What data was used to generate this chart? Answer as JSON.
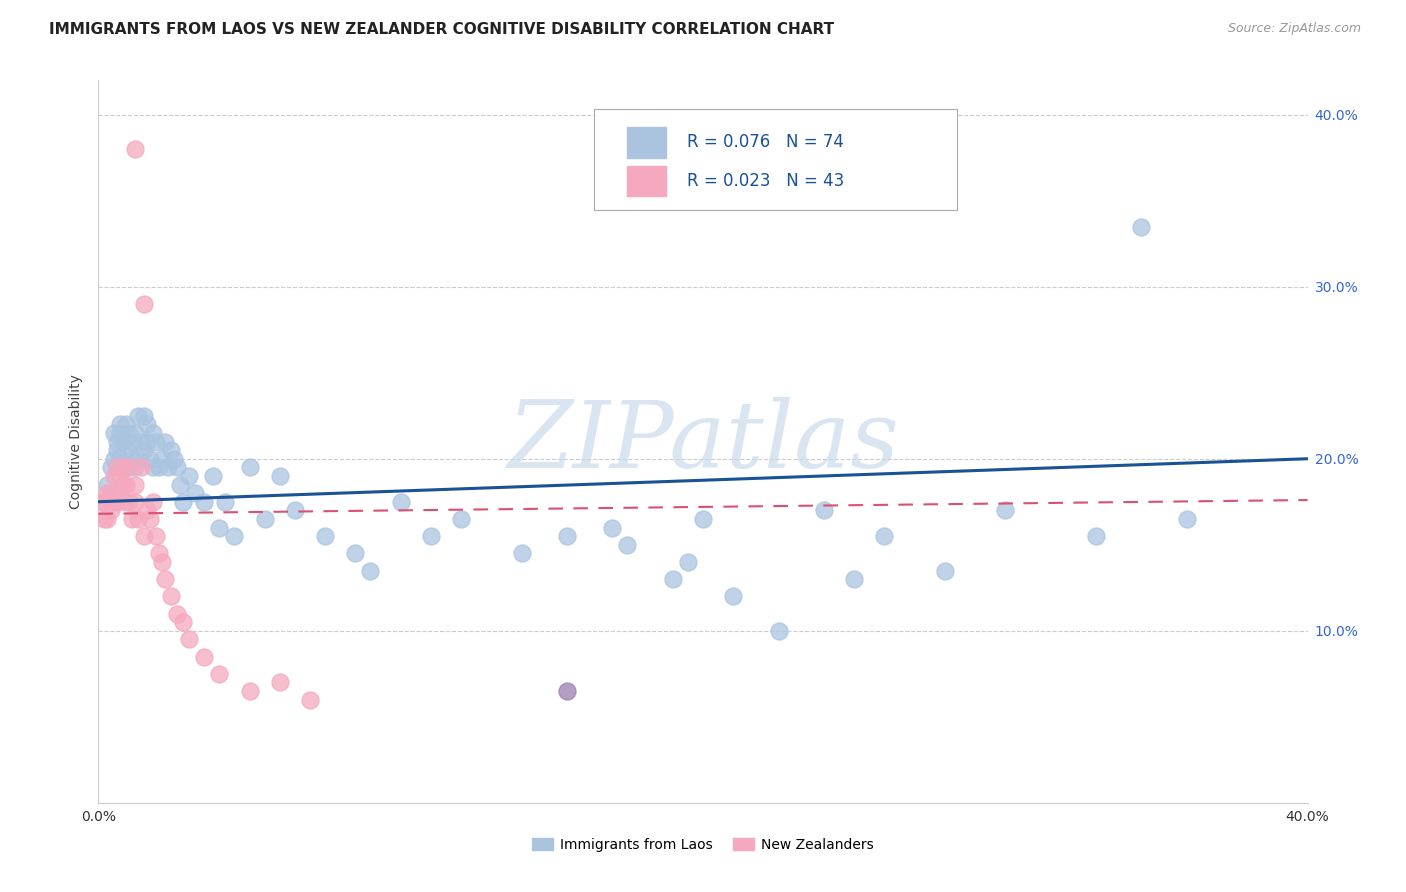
{
  "title": "IMMIGRANTS FROM LAOS VS NEW ZEALANDER COGNITIVE DISABILITY CORRELATION CHART",
  "source": "Source: ZipAtlas.com",
  "ylabel": "Cognitive Disability",
  "legend_label_blue": "Immigrants from Laos",
  "legend_label_pink": "New Zealanders",
  "R_blue": "0.076",
  "N_blue": "74",
  "R_pink": "0.023",
  "N_pink": "43",
  "xlim": [
    0.0,
    0.4
  ],
  "ylim": [
    0.0,
    0.42
  ],
  "blue_scatter_color": "#aac4e0",
  "pink_scatter_color": "#f5a8be",
  "purple_scatter_color": "#9c7eb0",
  "blue_line_color": "#1a5296",
  "pink_line_color": "#d95070",
  "grid_color": "#cccccc",
  "right_tick_color": "#3366cc",
  "bg_color": "#ffffff",
  "title_fontsize": 11,
  "tick_fontsize": 10,
  "axis_label_fontsize": 10,
  "watermark_text": "ZIPatlas",
  "watermark_color": "#c5d8ea",
  "blue_x": [
    0.003,
    0.004,
    0.005,
    0.005,
    0.006,
    0.006,
    0.006,
    0.007,
    0.007,
    0.007,
    0.008,
    0.008,
    0.009,
    0.009,
    0.01,
    0.01,
    0.011,
    0.011,
    0.012,
    0.012,
    0.013,
    0.013,
    0.014,
    0.015,
    0.015,
    0.016,
    0.016,
    0.017,
    0.018,
    0.018,
    0.019,
    0.02,
    0.021,
    0.022,
    0.023,
    0.024,
    0.025,
    0.026,
    0.027,
    0.028,
    0.03,
    0.032,
    0.035,
    0.038,
    0.04,
    0.042,
    0.045,
    0.05,
    0.055,
    0.06,
    0.065,
    0.075,
    0.085,
    0.09,
    0.1,
    0.11,
    0.12,
    0.14,
    0.155,
    0.17,
    0.19,
    0.2,
    0.24,
    0.26,
    0.28,
    0.3,
    0.33,
    0.36,
    0.175,
    0.195,
    0.21,
    0.225,
    0.25,
    0.345
  ],
  "blue_y": [
    0.185,
    0.195,
    0.2,
    0.215,
    0.205,
    0.195,
    0.21,
    0.22,
    0.2,
    0.215,
    0.195,
    0.21,
    0.22,
    0.205,
    0.195,
    0.215,
    0.2,
    0.21,
    0.195,
    0.215,
    0.2,
    0.225,
    0.21,
    0.225,
    0.205,
    0.22,
    0.21,
    0.2,
    0.195,
    0.215,
    0.21,
    0.195,
    0.2,
    0.21,
    0.195,
    0.205,
    0.2,
    0.195,
    0.185,
    0.175,
    0.19,
    0.18,
    0.175,
    0.19,
    0.16,
    0.175,
    0.155,
    0.195,
    0.165,
    0.19,
    0.17,
    0.155,
    0.145,
    0.135,
    0.175,
    0.155,
    0.165,
    0.145,
    0.155,
    0.16,
    0.13,
    0.165,
    0.17,
    0.155,
    0.135,
    0.17,
    0.155,
    0.165,
    0.15,
    0.14,
    0.12,
    0.1,
    0.13,
    0.335
  ],
  "pink_x": [
    0.001,
    0.002,
    0.002,
    0.003,
    0.003,
    0.004,
    0.004,
    0.005,
    0.005,
    0.006,
    0.006,
    0.007,
    0.007,
    0.008,
    0.008,
    0.009,
    0.009,
    0.01,
    0.01,
    0.011,
    0.012,
    0.012,
    0.013,
    0.014,
    0.015,
    0.016,
    0.017,
    0.018,
    0.019,
    0.02,
    0.021,
    0.022,
    0.024,
    0.026,
    0.028,
    0.03,
    0.035,
    0.04,
    0.05,
    0.06,
    0.07,
    0.012,
    0.015
  ],
  "pink_y": [
    0.175,
    0.165,
    0.175,
    0.165,
    0.18,
    0.17,
    0.18,
    0.175,
    0.19,
    0.175,
    0.195,
    0.18,
    0.19,
    0.185,
    0.195,
    0.175,
    0.185,
    0.195,
    0.175,
    0.165,
    0.175,
    0.185,
    0.165,
    0.195,
    0.155,
    0.17,
    0.165,
    0.175,
    0.155,
    0.145,
    0.14,
    0.13,
    0.12,
    0.11,
    0.105,
    0.095,
    0.085,
    0.075,
    0.065,
    0.07,
    0.06,
    0.38,
    0.29
  ],
  "purple_x": [
    0.155
  ],
  "purple_y": [
    0.065
  ]
}
